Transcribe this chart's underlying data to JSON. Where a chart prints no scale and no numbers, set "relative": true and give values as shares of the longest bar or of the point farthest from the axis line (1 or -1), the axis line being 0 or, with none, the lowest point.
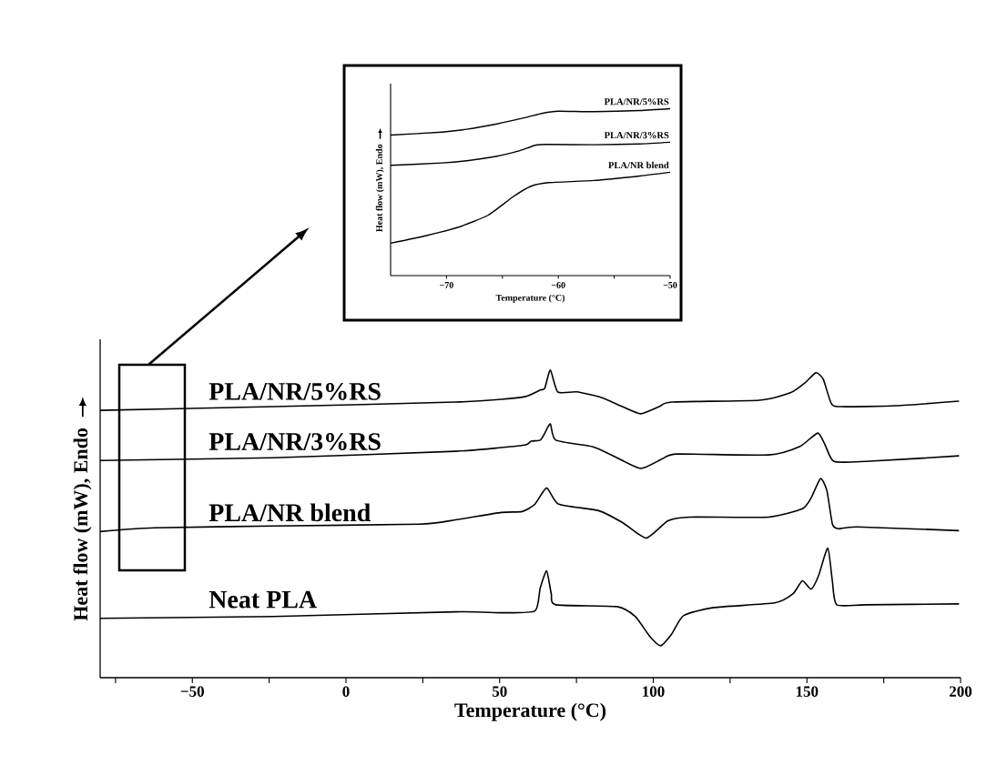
{
  "chart_data": [
    {
      "type": "line",
      "xlabel": "Temperature (°C)",
      "ylabel": "Heat flow (mW), Endo",
      "relative": true,
      "xlim": [
        -80,
        200
      ],
      "xticks": [
        {
          "value": -75,
          "label": null
        },
        {
          "value": -50,
          "label": "−50"
        },
        {
          "value": -25,
          "label": null
        },
        0,
        {
          "value": 25,
          "label": null
        },
        50,
        {
          "value": 75,
          "label": null
        },
        100,
        {
          "value": 125,
          "label": null
        },
        150,
        {
          "value": 175,
          "label": null
        },
        200
      ],
      "series": [
        {
          "name": "PLA/NR/5%RS",
          "color": "#000000",
          "x": [
            -80,
            -23.8,
            35.6,
            50.5,
            58.5,
            63.2,
            64.7,
            66.5,
            68.9,
            75.1,
            83.1,
            90,
            95.9,
            101.9,
            106,
            134.5,
            144.6,
            149.3,
            152.9,
            155.3,
            158,
            161.2,
            179,
            199.5
          ],
          "values": [
            0.869,
            0.881,
            0.896,
            0.905,
            0.914,
            0.935,
            0.941,
            1.0,
            0.929,
            0.929,
            0.911,
            0.881,
            0.858,
            0.881,
            0.896,
            0.902,
            0.926,
            0.958,
            0.991,
            0.97,
            0.89,
            0.881,
            0.884,
            0.899
          ]
        },
        {
          "name": "PLA/NR/3%RS",
          "color": "#000000",
          "x": [
            -80,
            -23.8,
            35.6,
            50.5,
            58.5,
            60.3,
            63.2,
            64.7,
            66.5,
            68.3,
            80.2,
            87,
            95.9,
            103,
            107.8,
            137.5,
            147.6,
            153.5,
            155.9,
            158.8,
            169.2,
            199.5
          ],
          "values": [
            0.706,
            0.715,
            0.736,
            0.748,
            0.757,
            0.769,
            0.772,
            0.795,
            0.825,
            0.772,
            0.751,
            0.721,
            0.68,
            0.712,
            0.727,
            0.724,
            0.751,
            0.795,
            0.757,
            0.703,
            0.703,
            0.721
          ]
        },
        {
          "name": "PLA/NR blend",
          "color": "#000000",
          "x": [
            -80,
            -62.4,
            -23.8,
            23.8,
            35.6,
            50.5,
            57.3,
            61.5,
            65.3,
            69.2,
            82.2,
            90,
            97.7,
            104.8,
            111.9,
            137.5,
            148.5,
            151.4,
            154.4,
            156.5,
            158.3,
            160.3,
            166.3,
            199.5
          ],
          "values": [
            0.475,
            0.487,
            0.493,
            0.499,
            0.513,
            0.537,
            0.54,
            0.564,
            0.617,
            0.564,
            0.543,
            0.504,
            0.454,
            0.51,
            0.522,
            0.522,
            0.549,
            0.585,
            0.647,
            0.608,
            0.499,
            0.484,
            0.49,
            0.478
          ]
        },
        {
          "name": "Neat PLA",
          "color": "#000000",
          "x": [
            -80,
            -23.8,
            35.6,
            50.5,
            61.5,
            63.2,
            65.3,
            66.8,
            68.3,
            88.2,
            94.1,
            98.9,
            102.4,
            106,
            109.9,
            119.7,
            139.5,
            145.5,
            148.5,
            151.4,
            153.8,
            156.8,
            158.3,
            159.7,
            169.2,
            199.5
          ],
          "values": [
            0.193,
            0.199,
            0.214,
            0.211,
            0.217,
            0.291,
            0.347,
            0.273,
            0.237,
            0.231,
            0.199,
            0.134,
            0.104,
            0.142,
            0.202,
            0.228,
            0.243,
            0.273,
            0.315,
            0.288,
            0.332,
            0.421,
            0.312,
            0.237,
            0.237,
            0.24
          ]
        }
      ]
    },
    {
      "type": "line",
      "xlabel": "Temperature (°C)",
      "ylabel": "Heat flow (mW), Endo",
      "relative": true,
      "xlim": [
        -75,
        -50
      ],
      "xticks": [
        {
          "value": -70,
          "label": "−70"
        },
        {
          "value": -65,
          "label": null
        },
        {
          "value": -60,
          "label": "−60"
        },
        {
          "value": -55,
          "label": null
        },
        {
          "value": -50,
          "label": "−50"
        }
      ],
      "series": [
        {
          "name": "PLA/NR/5%RS",
          "color": "#000000",
          "x": [
            -75,
            -70.4,
            -68.2,
            -65.5,
            -63.0,
            -61.4,
            -60.0,
            -56.8,
            -52.7,
            -50
          ],
          "values": [
            0.842,
            0.86,
            0.877,
            0.909,
            0.946,
            0.973,
            0.985,
            0.982,
            0.989,
            1.0
          ]
        },
        {
          "name": "PLA/NR/3%RS",
          "color": "#000000",
          "x": [
            -75,
            -70.4,
            -68.2,
            -65.5,
            -63.6,
            -62.0,
            -60.9,
            -56.8,
            -52.7,
            -50
          ],
          "values": [
            0.661,
            0.675,
            0.688,
            0.715,
            0.746,
            0.782,
            0.786,
            0.784,
            0.789,
            0.799
          ]
        },
        {
          "name": "PLA/NR blend",
          "color": "#000000",
          "x": [
            -75,
            -71.8,
            -69.0,
            -66.3,
            -64.1,
            -62.5,
            -60.9,
            -56.8,
            -52.7,
            -50
          ],
          "values": [
            0.194,
            0.24,
            0.289,
            0.361,
            0.47,
            0.534,
            0.557,
            0.57,
            0.597,
            0.619
          ]
        }
      ]
    }
  ]
}
